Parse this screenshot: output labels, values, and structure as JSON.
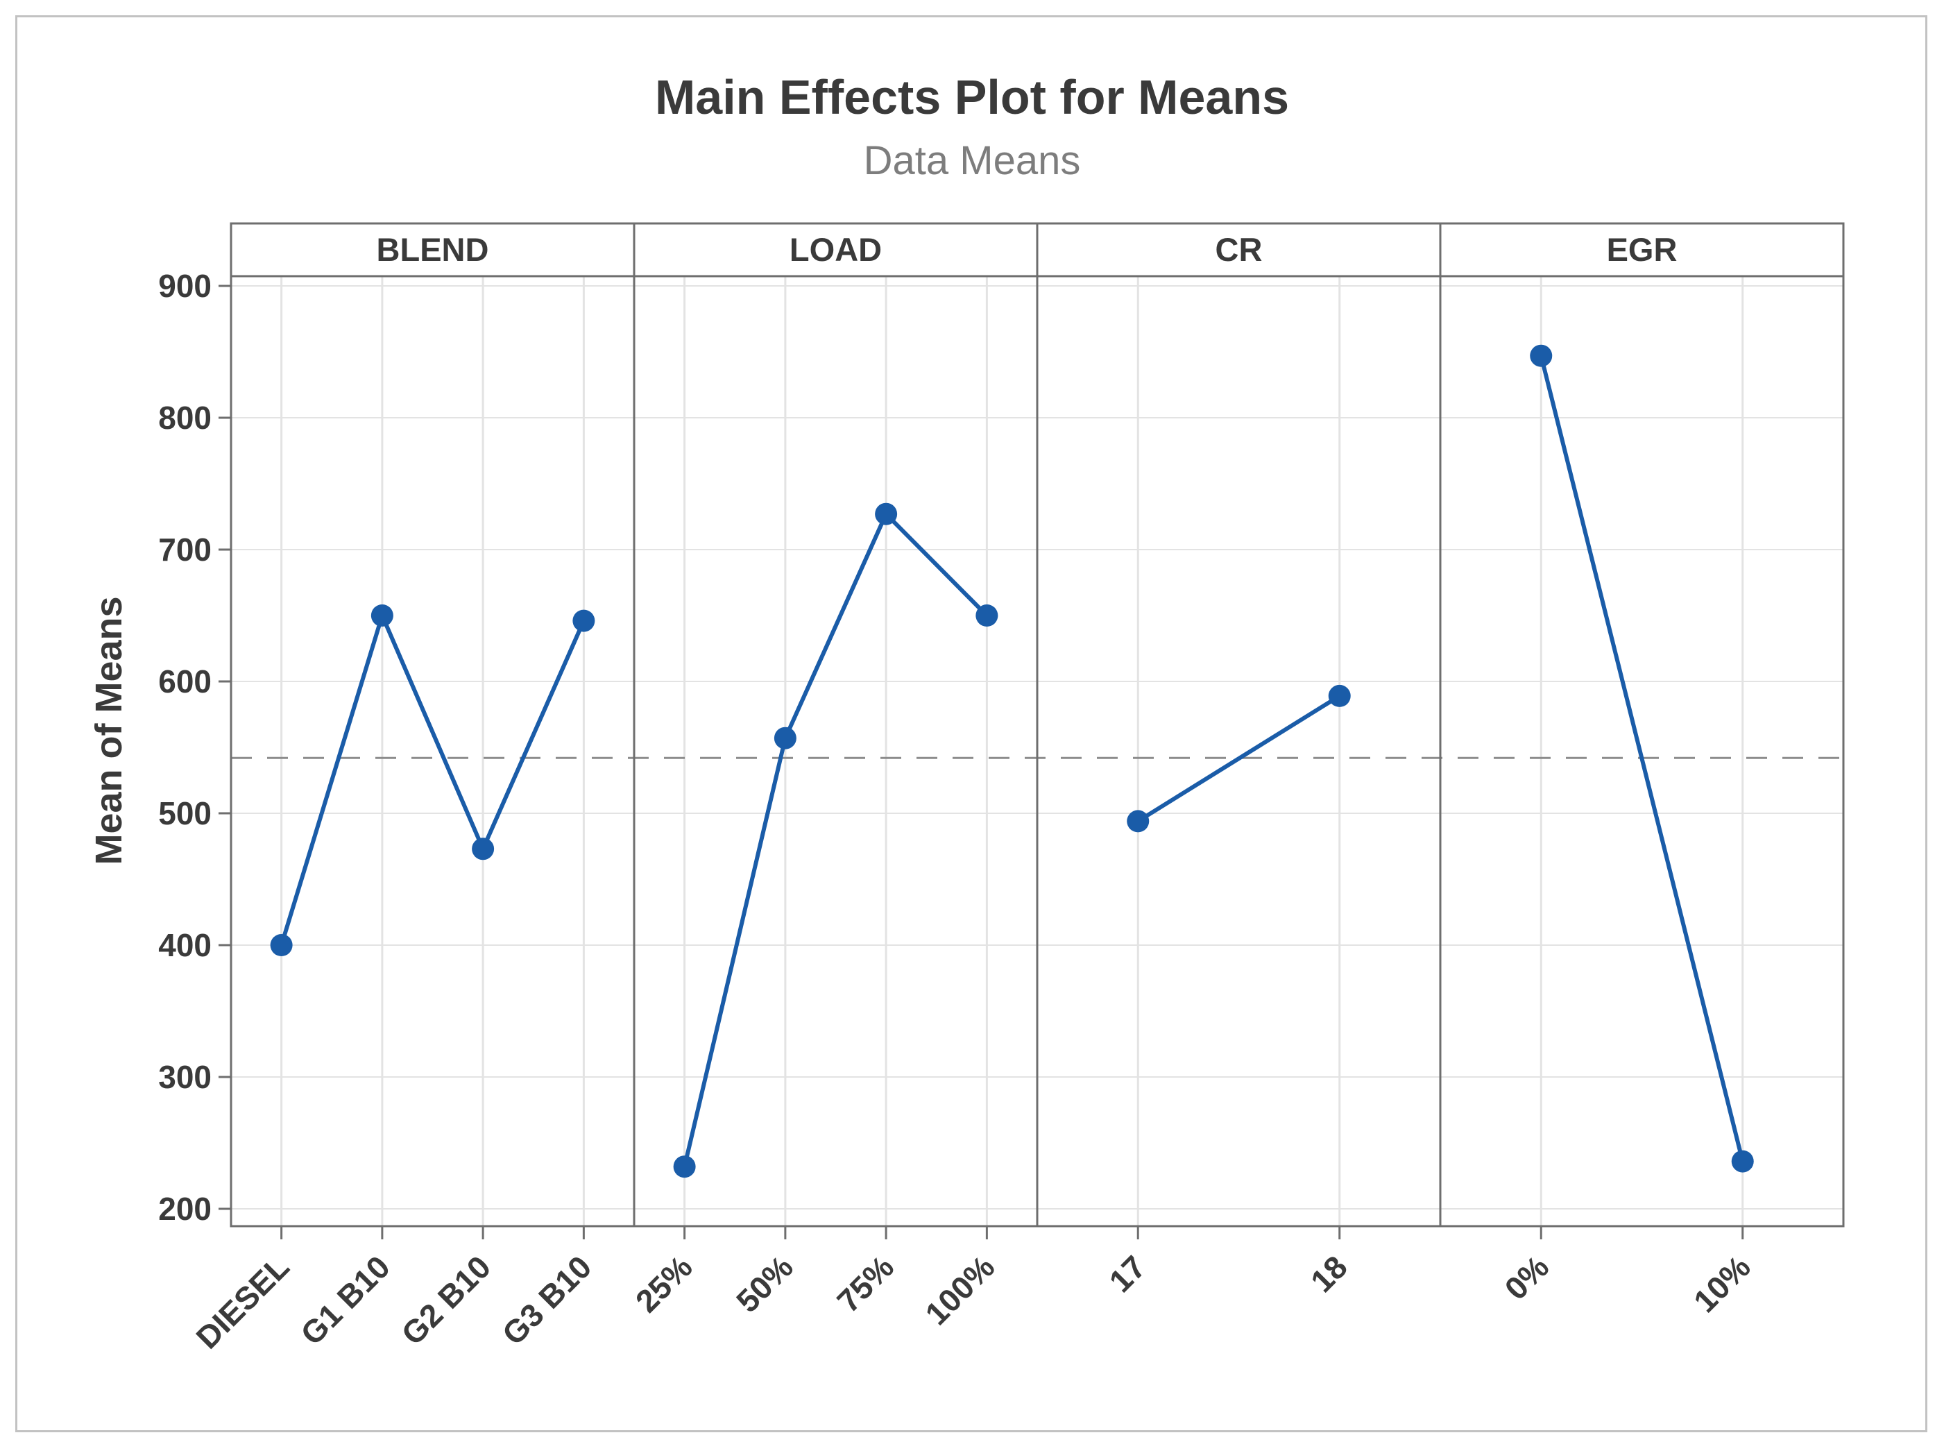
{
  "page": {
    "background": "#ffffff",
    "frame_border_color": "#c2c2c2"
  },
  "chart_data": {
    "type": "line",
    "title": "Main Effects Plot for Means",
    "subtitle": "Data Means",
    "ylabel": "Mean of Means",
    "ylim": [
      187,
      907
    ],
    "yticks": [
      200,
      300,
      400,
      500,
      600,
      700,
      800,
      900
    ],
    "grid": true,
    "legend_position": "none",
    "grand_mean": 542,
    "grand_mean_line_style": "dashed",
    "series_color": "#1a5ca8",
    "grand_mean_line_color": "#8c8c8c",
    "grid_color": "#e3e3e3",
    "border_color": "#6e6e6e",
    "text_color": "#3a3a3a",
    "panels": [
      {
        "factor": "BLEND",
        "categories": [
          "DIESEL",
          "G1 B10",
          "G2 B10",
          "G3 B10"
        ],
        "values": [
          400,
          650,
          473,
          646
        ]
      },
      {
        "factor": "LOAD",
        "categories": [
          "25%",
          "50%",
          "75%",
          "100%"
        ],
        "values": [
          232,
          557,
          727,
          650
        ]
      },
      {
        "factor": "CR",
        "categories": [
          "17",
          "18"
        ],
        "values": [
          494,
          589
        ]
      },
      {
        "factor": "EGR",
        "categories": [
          "0%",
          "10%"
        ],
        "values": [
          847,
          236
        ]
      }
    ]
  }
}
